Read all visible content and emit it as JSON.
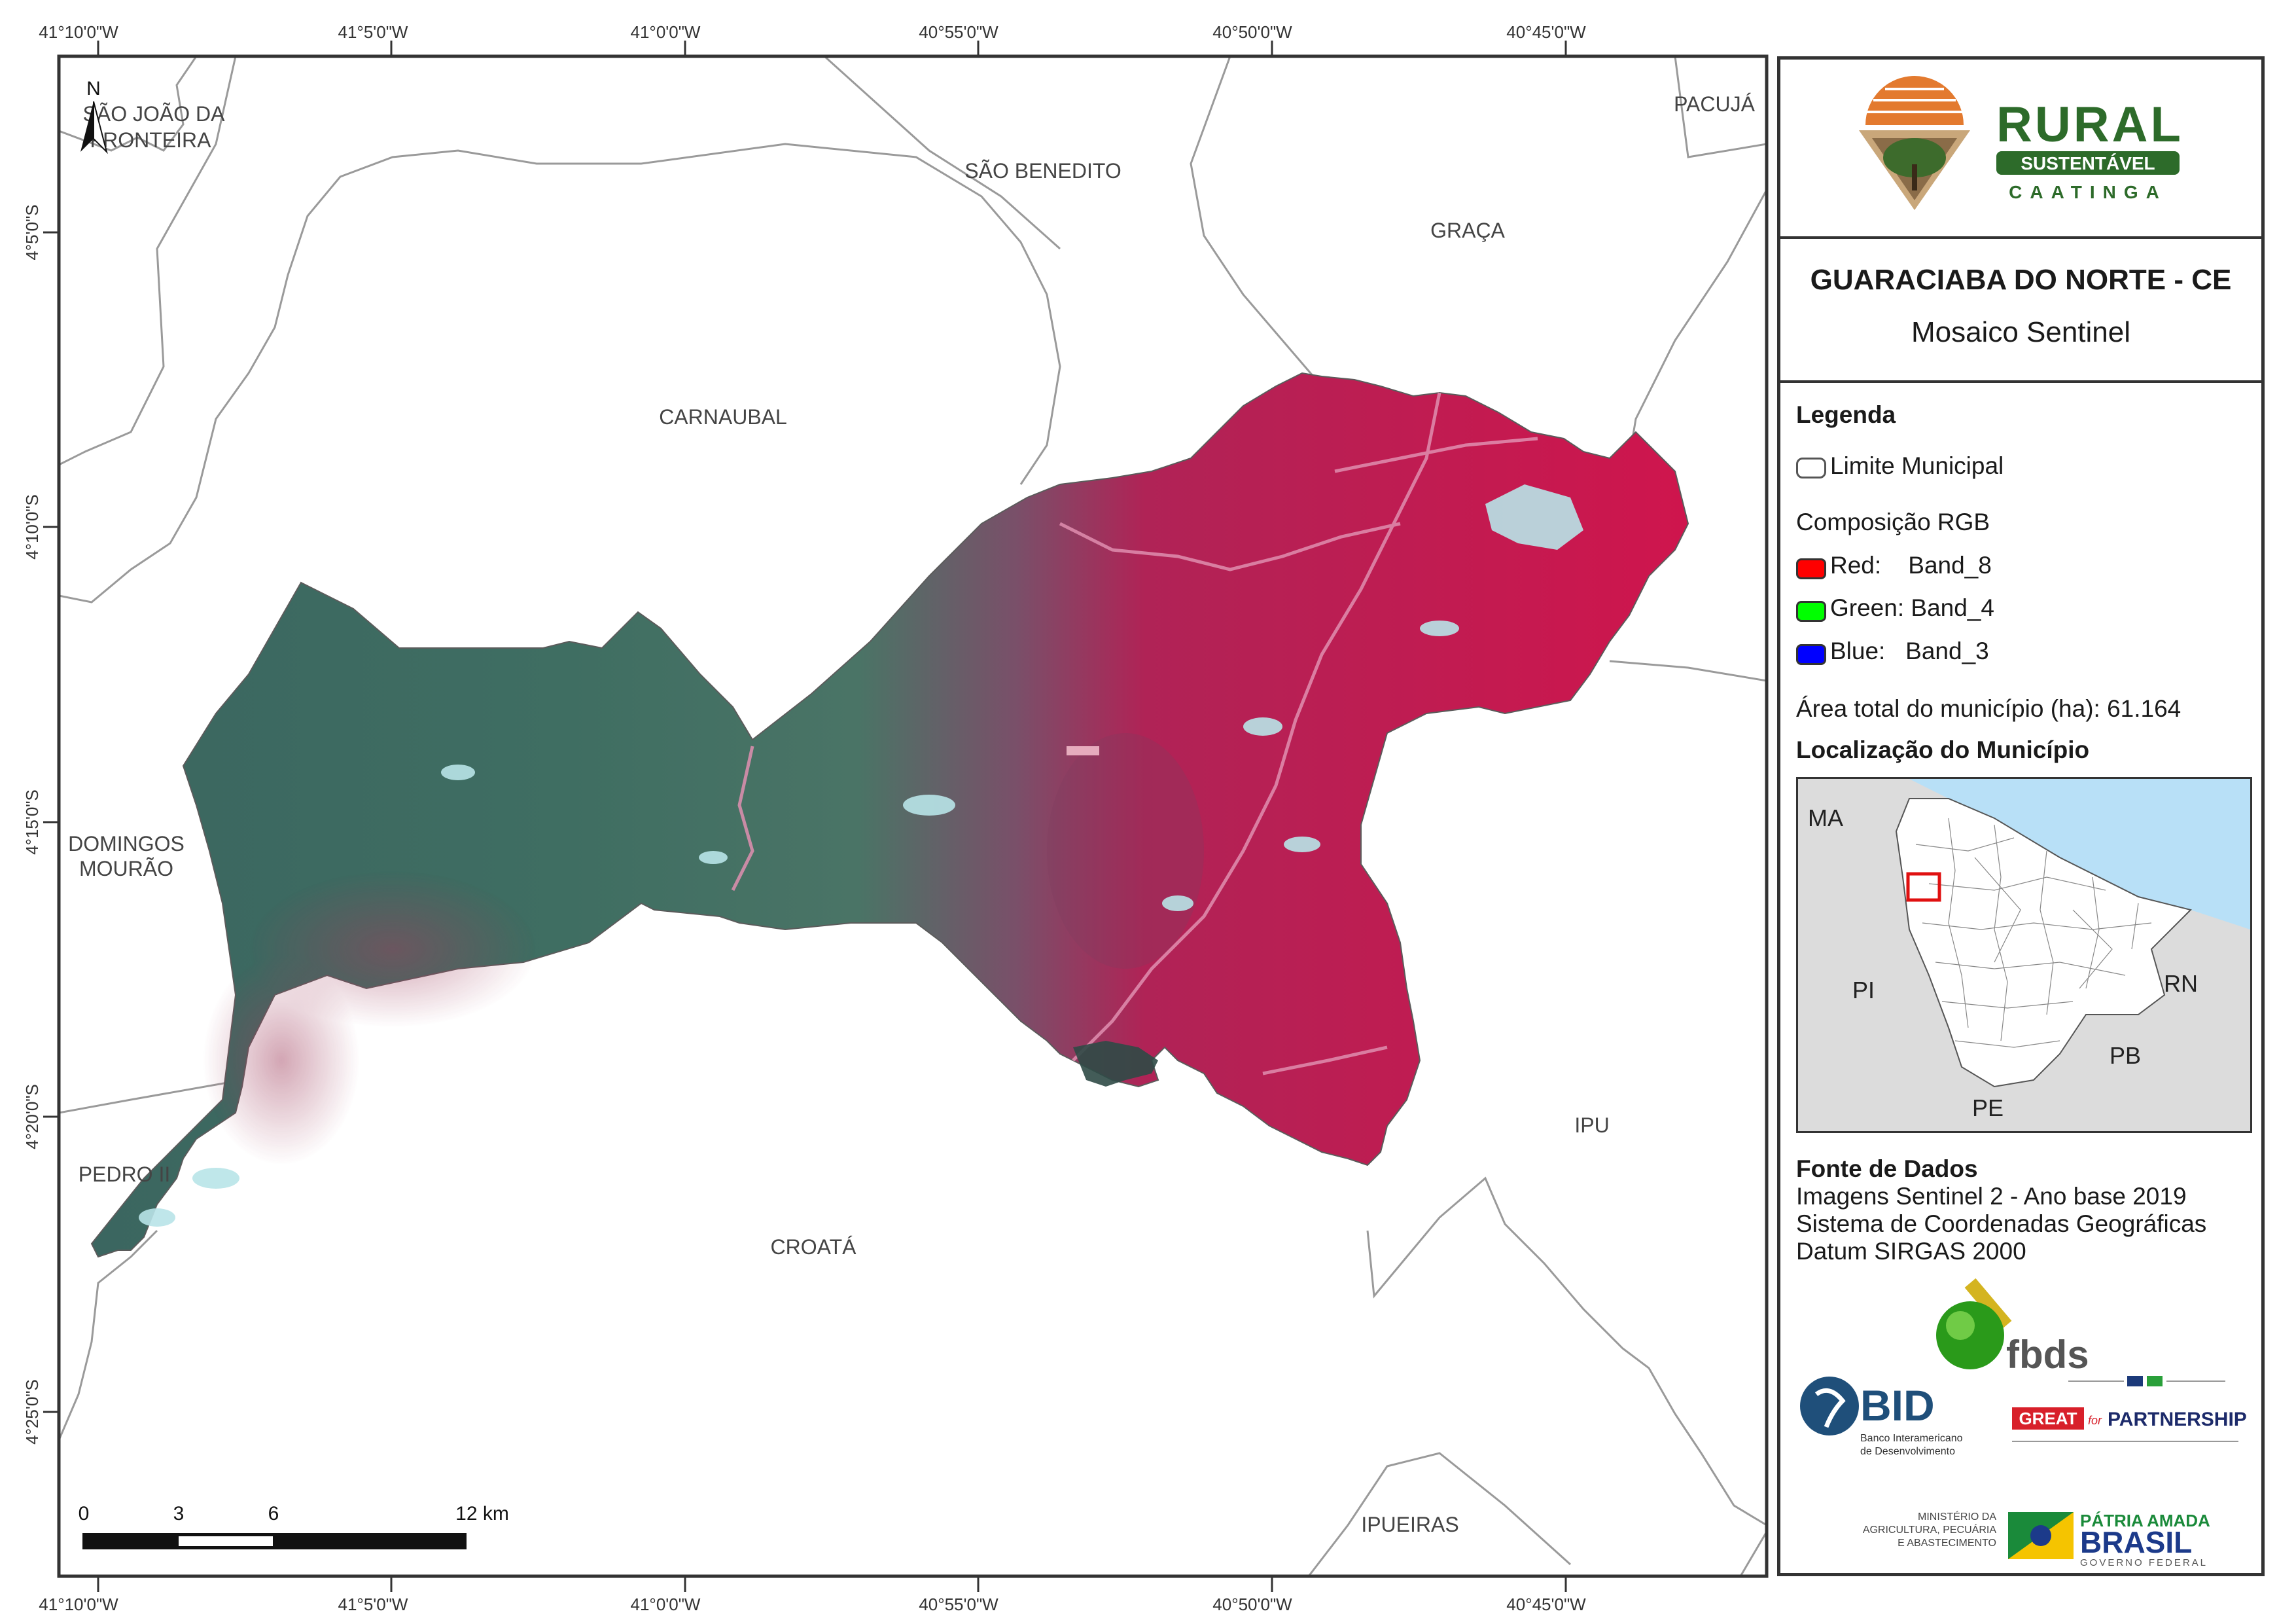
{
  "map": {
    "top_ticks": [
      "41°10'0\"W",
      "41°5'0\"W",
      "41°0'0\"W",
      "40°55'0\"W",
      "40°50'0\"W",
      "40°45'0\"W"
    ],
    "bottom_ticks": [
      "41°10'0\"W",
      "41°5'0\"W",
      "41°0'0\"W",
      "40°55'0\"W",
      "40°50'0\"W",
      "40°45'0\"W"
    ],
    "left_ticks": [
      "4°5'0\"S",
      "4°10'0\"S",
      "4°15'0\"S",
      "4°20'0\"S",
      "4°25'0\"S"
    ],
    "north_label": "N",
    "places": {
      "sao_joao_1": "SÃO JOÃO DA",
      "sao_joao_2": "FRONTEIRA",
      "sao_benedito": "SÃO BENEDITO",
      "pacuja": "PACUJÁ",
      "graca": "GRAÇA",
      "carnaubal": "CARNAUBAL",
      "domingos_1": "DOMINGOS",
      "domingos_2": "MOURÃO",
      "pedro_ii": "PEDRO II",
      "croata": "CROATÁ",
      "ipu": "IPU",
      "ipueiras": "IPUEIRAS"
    },
    "scale_labels": [
      "0",
      "3",
      "6",
      "12 km"
    ],
    "colors": {
      "vegetation_red": "#c8174f",
      "vegetation_green": "#3f6e62",
      "urban": "#b8e4e8"
    }
  },
  "legend": {
    "title": "GUARACIABA DO NORTE - CE",
    "subtitle": "Mosaico Sentinel",
    "legenda_heading": "Legenda",
    "limite_label": "Limite Municipal",
    "rgb_heading": "Composição RGB",
    "bands": [
      {
        "label": "Red:    Band_8",
        "color": "#ff0000"
      },
      {
        "label": "Green: Band_4",
        "color": "#00ff00"
      },
      {
        "label": "Blue:   Band_3",
        "color": "#0000ff"
      }
    ],
    "area_text": "Área total do município (ha): 61.164",
    "location_heading": "Localização do Município",
    "inset_states": [
      "MA",
      "PI",
      "RN",
      "PB",
      "PE"
    ],
    "fonte_heading": "Fonte de Dados",
    "fonte_lines": [
      "Imagens Sentinel 2 - Ano base 2019",
      "Sistema de Coordenadas Geográficas",
      "Datum SIRGAS 2000"
    ]
  },
  "logos": {
    "rural_word": "RURAL",
    "sustentavel": "SUSTENTÁVEL",
    "caatinga": "CAATINGA",
    "fbds": "fbds",
    "bid": "BID",
    "bid_sub_1": "Banco Interamericano",
    "bid_sub_2": "de Desenvolvimento",
    "great": "GREAT",
    "for": "for",
    "partnership": "PARTNERSHIP",
    "ministerio_1": "MINISTÉRIO DA",
    "ministerio_2": "AGRICULTURA, PECUÁRIA",
    "ministerio_3": "E ABASTECIMENTO",
    "patria": "PÁTRIA AMADA",
    "brasil": "BRASIL",
    "governo": "GOVERNO FEDERAL"
  }
}
